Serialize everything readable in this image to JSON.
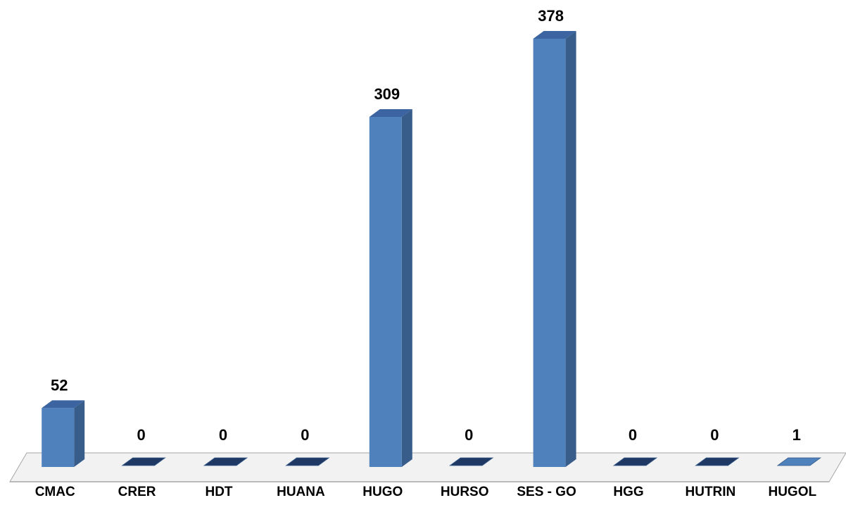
{
  "chart_data": {
    "type": "bar",
    "categories": [
      "CMAC",
      "CRER",
      "HDT",
      "HUANA",
      "HUGO",
      "HURSO",
      "SES - GO",
      "HGG",
      "HUTRIN",
      "HUGOL"
    ],
    "values": [
      52,
      0,
      0,
      0,
      309,
      0,
      378,
      0,
      0,
      1
    ],
    "value_labels": [
      "52",
      "0",
      "0",
      "0",
      "309",
      "0",
      "378",
      "0",
      "0",
      "1"
    ],
    "ylim": [
      0,
      378
    ],
    "grid": false,
    "legend": "none",
    "style": "3d-column",
    "colors": {
      "bar_front": "#4F81BD",
      "bar_side": "#385D8A",
      "bar_top": "#3B64A0",
      "empty_tile": "#1F3864",
      "floor": "#F2F2F2",
      "floor_edge": "#A6A6A6"
    }
  }
}
